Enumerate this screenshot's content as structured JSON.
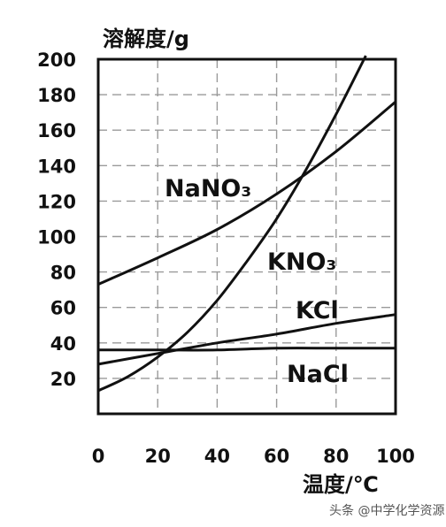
{
  "chart_data": {
    "type": "line",
    "xlabel": "温度/℃",
    "ylabel": "溶解度/g",
    "xlim": [
      0,
      100
    ],
    "ylim": [
      0,
      200
    ],
    "x_ticks": [
      "0",
      "20",
      "40",
      "60",
      "80",
      "100"
    ],
    "y_ticks": [
      "20",
      "40",
      "60",
      "80",
      "100",
      "120",
      "140",
      "160",
      "180",
      "200"
    ],
    "grid": true,
    "series": [
      {
        "name": "NaNO₃",
        "x": [
          0,
          20,
          40,
          60,
          80,
          100
        ],
        "y": [
          73,
          88,
          104,
          124,
          148,
          176
        ]
      },
      {
        "name": "KNO₃",
        "x": [
          0,
          10,
          20,
          30,
          40,
          50,
          60,
          70,
          80,
          90
        ],
        "y": [
          13,
          21,
          32,
          46,
          64,
          86,
          110,
          138,
          169,
          202
        ]
      },
      {
        "name": "KCl",
        "x": [
          0,
          20,
          40,
          60,
          80,
          100
        ],
        "y": [
          28,
          34,
          40,
          45,
          51,
          56
        ]
      },
      {
        "name": "NaCl",
        "x": [
          0,
          20,
          40,
          60,
          80,
          100
        ],
        "y": [
          36,
          36,
          36,
          37,
          37,
          37
        ]
      }
    ]
  },
  "watermark": "头条 @中学化学资源"
}
